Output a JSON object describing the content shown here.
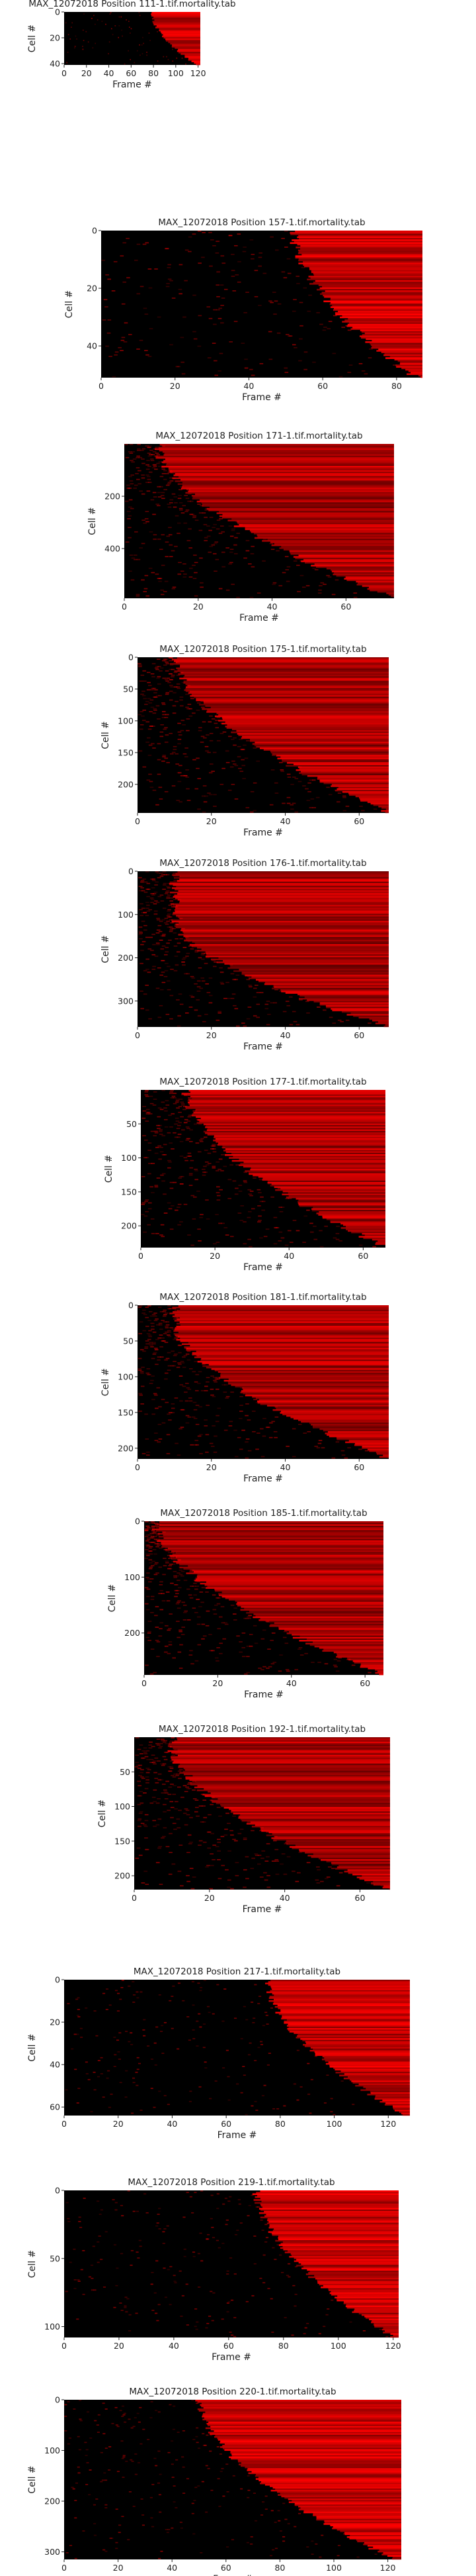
{
  "figure": {
    "background": "#ffffff",
    "colormap": [
      "#000000",
      "#ff0000"
    ],
    "tick_color": "#222222"
  },
  "chart_data": [
    {
      "type": "heatmap",
      "title": "MAX_12072018 Position 111-1.tif.mortality.tab",
      "xlabel": "Frame #",
      "ylabel": "Cell #",
      "xlim": [
        0,
        122
      ],
      "ylim": [
        0,
        41
      ],
      "y_inverted": true,
      "xticks": [
        0,
        20,
        40,
        60,
        80,
        100,
        120
      ],
      "yticks": [
        0,
        20,
        40
      ],
      "death_onset": {
        "first_frame": 78,
        "last_frame": 118,
        "start_fraction": 0.0
      },
      "background_signal": "sparse"
    },
    {
      "type": "heatmap",
      "title": "MAX_12072018 Position 157-1.tif.mortality.tab",
      "xlabel": "Frame #",
      "ylabel": "Cell #",
      "xlim": [
        0,
        87
      ],
      "ylim": [
        0,
        51
      ],
      "y_inverted": true,
      "xticks": [
        0,
        20,
        40,
        60,
        80
      ],
      "yticks": [
        0,
        20,
        40
      ],
      "death_onset": {
        "first_frame": 52,
        "last_frame": 85,
        "start_fraction": 0.0
      },
      "background_signal": "sparse"
    },
    {
      "type": "heatmap",
      "title": "MAX_12072018 Position 171-1.tif.mortality.tab",
      "xlabel": "Frame #",
      "ylabel": "Cell #",
      "xlim": [
        0,
        73
      ],
      "ylim": [
        0,
        590
      ],
      "y_inverted": true,
      "xticks": [
        0,
        20,
        40,
        60
      ],
      "yticks": [
        200,
        400
      ],
      "death_onset": {
        "first_frame": 9,
        "last_frame": 73,
        "start_fraction": 0.0
      },
      "background_signal": "dense"
    },
    {
      "type": "heatmap",
      "title": "MAX_12072018 Position 175-1.tif.mortality.tab",
      "xlabel": "Frame #",
      "ylabel": "Cell #",
      "xlim": [
        0,
        68
      ],
      "ylim": [
        0,
        245
      ],
      "y_inverted": true,
      "xticks": [
        0,
        20,
        40,
        60
      ],
      "yticks": [
        0,
        50,
        100,
        150,
        200
      ],
      "death_onset": {
        "first_frame": 10,
        "last_frame": 68,
        "start_fraction": 0.0
      },
      "background_signal": "dense"
    },
    {
      "type": "heatmap",
      "title": "MAX_12072018 Position 176-1.tif.mortality.tab",
      "xlabel": "Frame #",
      "ylabel": "Cell #",
      "xlim": [
        0,
        68
      ],
      "ylim": [
        0,
        360
      ],
      "y_inverted": true,
      "xticks": [
        0,
        20,
        40,
        60
      ],
      "yticks": [
        0,
        100,
        200,
        300
      ],
      "death_onset": {
        "first_frame": 10,
        "last_frame": 68,
        "start_fraction": 0.3
      },
      "background_signal": "dense"
    },
    {
      "type": "heatmap",
      "title": "MAX_12072018 Position 177-1.tif.mortality.tab",
      "xlabel": "Frame #",
      "ylabel": "Cell #",
      "xlim": [
        0,
        66
      ],
      "ylim": [
        0,
        232
      ],
      "y_inverted": true,
      "xticks": [
        0,
        20,
        40,
        60
      ],
      "yticks": [
        50,
        100,
        150,
        200
      ],
      "death_onset": {
        "first_frame": 12,
        "last_frame": 66,
        "start_fraction": 0.0
      },
      "background_signal": "dense"
    },
    {
      "type": "heatmap",
      "title": "MAX_12072018 Position 181-1.tif.mortality.tab",
      "xlabel": "Frame #",
      "ylabel": "Cell #",
      "xlim": [
        0,
        68
      ],
      "ylim": [
        0,
        215
      ],
      "y_inverted": true,
      "xticks": [
        0,
        20,
        40,
        60
      ],
      "yticks": [
        0,
        50,
        100,
        150,
        200
      ],
      "death_onset": {
        "first_frame": 10,
        "last_frame": 68,
        "start_fraction": 0.1
      },
      "background_signal": "dense"
    },
    {
      "type": "heatmap",
      "title": "MAX_12072018 Position 185-1.tif.mortality.tab",
      "xlabel": "Frame #",
      "ylabel": "Cell #",
      "xlim": [
        0,
        65
      ],
      "ylim": [
        0,
        275
      ],
      "y_inverted": true,
      "xticks": [
        0,
        20,
        40,
        60
      ],
      "yticks": [
        0,
        100,
        200
      ],
      "death_onset": {
        "first_frame": 3,
        "last_frame": 65,
        "start_fraction": 0.0
      },
      "background_signal": "dense"
    },
    {
      "type": "heatmap",
      "title": "MAX_12072018 Position 192-1.tif.mortality.tab",
      "xlabel": "Frame #",
      "ylabel": "Cell #",
      "xlim": [
        0,
        68
      ],
      "ylim": [
        0,
        220
      ],
      "y_inverted": true,
      "xticks": [
        0,
        20,
        40,
        60
      ],
      "yticks": [
        50,
        100,
        150,
        200
      ],
      "death_onset": {
        "first_frame": 10,
        "last_frame": 68,
        "start_fraction": 0.05
      },
      "background_signal": "dense"
    },
    {
      "type": "heatmap",
      "title": "MAX_12072018 Position 217-1.tif.mortality.tab",
      "xlabel": "Frame #",
      "ylabel": "Cell #",
      "xlim": [
        0,
        128
      ],
      "ylim": [
        0,
        64
      ],
      "y_inverted": true,
      "xticks": [
        0,
        20,
        40,
        60,
        80,
        100,
        120
      ],
      "yticks": [
        0,
        20,
        40,
        60
      ],
      "death_onset": {
        "first_frame": 75,
        "last_frame": 126,
        "start_fraction": 0.0
      },
      "background_signal": "sparse"
    },
    {
      "type": "heatmap",
      "title": "MAX_12072018 Position 219-1.tif.mortality.tab",
      "xlabel": "Frame #",
      "ylabel": "Cell #",
      "xlim": [
        0,
        122
      ],
      "ylim": [
        0,
        108
      ],
      "y_inverted": true,
      "xticks": [
        0,
        20,
        40,
        60,
        80,
        100,
        120
      ],
      "yticks": [
        0,
        50,
        100
      ],
      "death_onset": {
        "first_frame": 70,
        "last_frame": 120,
        "start_fraction": 0.0
      },
      "background_signal": "sparse"
    },
    {
      "type": "heatmap",
      "title": "MAX_12072018 Position 220-1.tif.mortality.tab",
      "xlabel": "Frame #",
      "ylabel": "Cell #",
      "xlim": [
        0,
        125
      ],
      "ylim": [
        0,
        315
      ],
      "y_inverted": true,
      "xticks": [
        0,
        20,
        40,
        60,
        80,
        100,
        120
      ],
      "yticks": [
        0,
        100,
        200,
        300
      ],
      "death_onset": {
        "first_frame": 50,
        "last_frame": 122,
        "start_fraction": 0.0
      },
      "background_signal": "sparse"
    }
  ]
}
